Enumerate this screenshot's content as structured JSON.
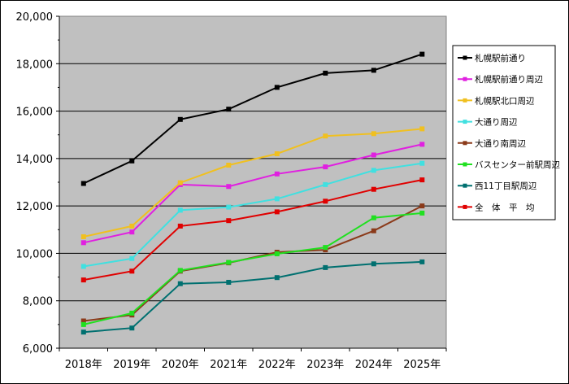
{
  "chart_data": {
    "type": "line",
    "categories": [
      "2018年",
      "2019年",
      "2020年",
      "2021年",
      "2022年",
      "2023年",
      "2024年",
      "2025年"
    ],
    "ylim": [
      6000,
      20000
    ],
    "yticks": [
      "6,000",
      "8,000",
      "10,000",
      "12,000",
      "14,000",
      "16,000",
      "18,000",
      "20,000"
    ],
    "grid": true,
    "legend_position": "right",
    "plot_background": "#c0c0c0",
    "series": [
      {
        "name": "札幌駅前通り",
        "color": "#000000",
        "values": [
          12950,
          13900,
          15650,
          16080,
          17000,
          17600,
          17720,
          18400
        ]
      },
      {
        "name": "札幌駅前通り周辺",
        "color": "#e020e0",
        "values": [
          10450,
          10900,
          12900,
          12820,
          13350,
          13650,
          14150,
          14600
        ]
      },
      {
        "name": "札幌駅北口周辺",
        "color": "#f0c020",
        "values": [
          10700,
          11150,
          12980,
          13720,
          14200,
          14950,
          15050,
          15250
        ]
      },
      {
        "name": "大通り周辺",
        "color": "#40e0e0",
        "values": [
          9450,
          9780,
          11820,
          11950,
          12300,
          12900,
          13500,
          13800
        ]
      },
      {
        "name": "大通り南周辺",
        "color": "#8b3a1a",
        "values": [
          7150,
          7400,
          9250,
          9600,
          10050,
          10150,
          10950,
          12000
        ]
      },
      {
        "name": "バスセンター前駅周辺",
        "color": "#20e020",
        "values": [
          7000,
          7480,
          9280,
          9620,
          9980,
          10250,
          11500,
          11700
        ]
      },
      {
        "name": "西11丁目駅周辺",
        "color": "#007070",
        "values": [
          6680,
          6850,
          8720,
          8780,
          8980,
          9400,
          9560,
          9640
        ]
      },
      {
        "name": "全　体　平　均",
        "color": "#e00000",
        "values": [
          8880,
          9250,
          11150,
          11380,
          11750,
          12200,
          12700,
          13100
        ]
      }
    ]
  }
}
